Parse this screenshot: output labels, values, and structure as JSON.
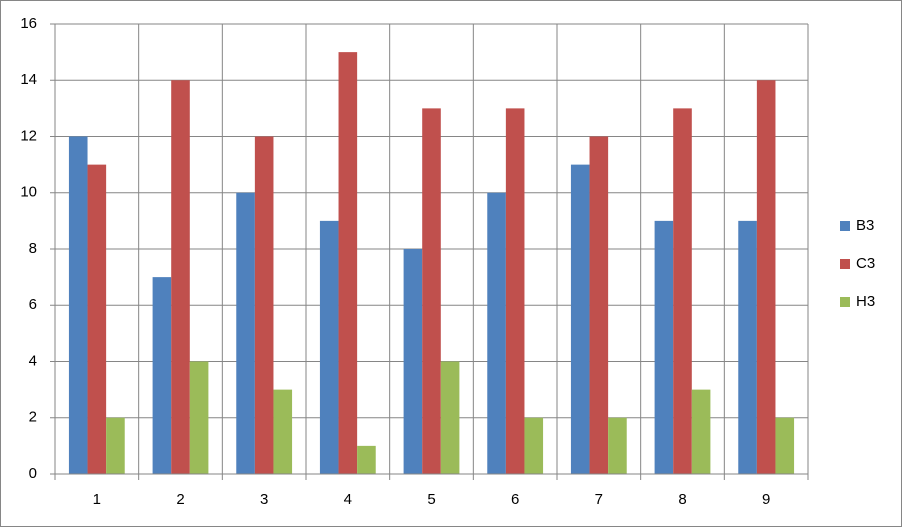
{
  "chart_data": {
    "type": "bar",
    "categories": [
      "1",
      "2",
      "3",
      "4",
      "5",
      "6",
      "7",
      "8",
      "9"
    ],
    "series": [
      {
        "name": "В3",
        "color": "#4f81bd",
        "values": [
          12,
          7,
          10,
          9,
          8,
          10,
          11,
          9,
          9
        ]
      },
      {
        "name": "С3",
        "color": "#c0504d",
        "values": [
          11,
          14,
          12,
          15,
          13,
          13,
          12,
          13,
          14
        ]
      },
      {
        "name": "Н3",
        "color": "#9bbb59",
        "values": [
          2,
          4,
          3,
          1,
          4,
          2,
          2,
          3,
          2
        ]
      }
    ],
    "ylim": [
      0,
      16
    ],
    "yticks": [
      0,
      2,
      4,
      6,
      8,
      10,
      12,
      14,
      16
    ],
    "grid": true,
    "legend": "right"
  }
}
